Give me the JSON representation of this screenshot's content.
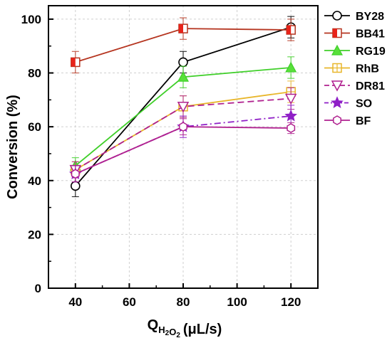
{
  "chart_data": {
    "type": "line",
    "x": [
      40,
      80,
      120
    ],
    "xlabel": "Q",
    "xlabel_sub": "H2O2",
    "xlabel_unit": "(μL/s)",
    "ylabel": "Conversion (%)",
    "xlim": [
      30,
      130
    ],
    "ylim": [
      0,
      105
    ],
    "xticks": [
      "40",
      "60",
      "80",
      "100",
      "120"
    ],
    "yticks": [
      "0",
      "20",
      "40",
      "60",
      "80",
      "100"
    ],
    "grid": true,
    "legend_position": "top-right",
    "series": [
      {
        "name": "BY28",
        "values": [
          38,
          84,
          97
        ],
        "errors": [
          4,
          4,
          4
        ],
        "color": "#000000",
        "marker": "circle-open",
        "dash": "solid"
      },
      {
        "name": "BB41",
        "values": [
          84,
          96.5,
          96
        ],
        "errors": [
          4,
          4,
          4
        ],
        "color": "#b5341f",
        "fill": "#e8231a",
        "marker": "square-half",
        "dash": "solid"
      },
      {
        "name": "RG19",
        "values": [
          45.5,
          78.5,
          82
        ],
        "errors": [
          3,
          4,
          4
        ],
        "color": "#3fcf29",
        "fill": "#58e03a",
        "marker": "triangle-up",
        "dash": "solid"
      },
      {
        "name": "RhB",
        "values": [
          44,
          67.5,
          73
        ],
        "errors": [
          3,
          4,
          4
        ],
        "color": "#e8b62a",
        "marker": "square-cross",
        "dash": "solid"
      },
      {
        "name": "DR81",
        "values": [
          44,
          67.5,
          70.5
        ],
        "errors": [
          3,
          4,
          4
        ],
        "color": "#b0218f",
        "marker": "triangle-down-open",
        "dash": "dash"
      },
      {
        "name": "SO",
        "values": [
          42.5,
          60,
          64
        ],
        "errors": [
          3,
          4,
          4
        ],
        "color": "#8f1fc7",
        "fill": "#8f1fc7",
        "marker": "star",
        "dash": "dashdot"
      },
      {
        "name": "BF",
        "values": [
          42.5,
          60,
          59.5
        ],
        "errors": [
          3,
          3,
          2
        ],
        "color": "#b0218f",
        "marker": "hexagon-open",
        "dash": "solid"
      }
    ]
  }
}
